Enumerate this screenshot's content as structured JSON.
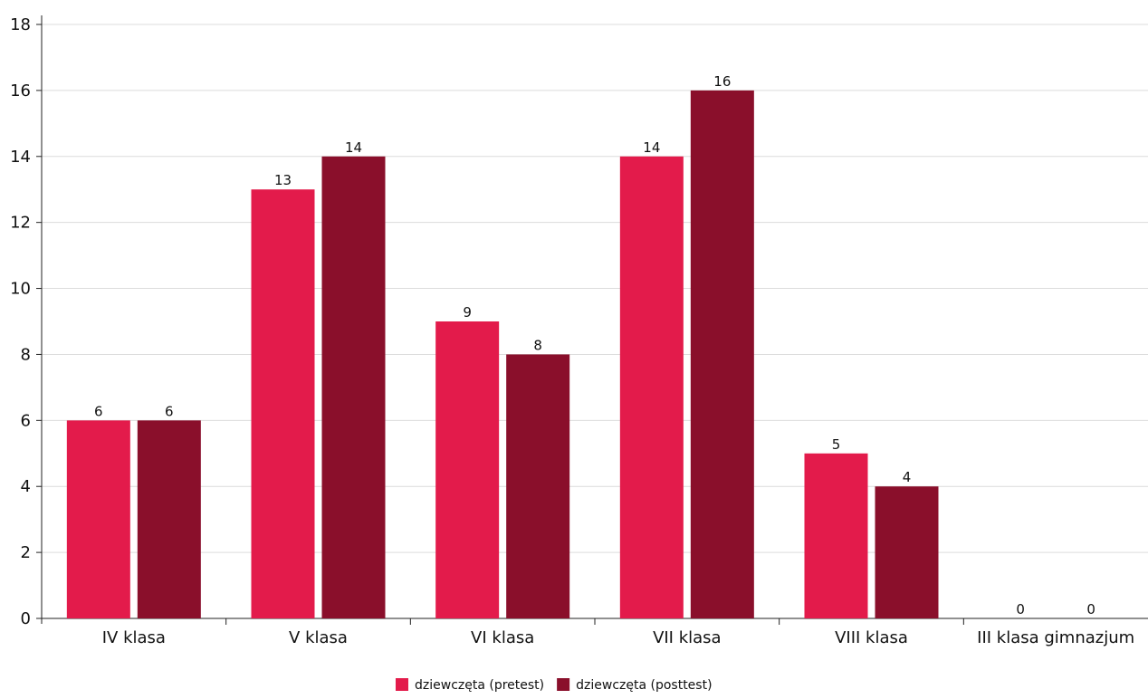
{
  "chart_data": {
    "type": "bar",
    "categories": [
      "IV klasa",
      "V klasa",
      "VI klasa",
      "VII klasa",
      "VIII klasa",
      "III klasa gimnazjum"
    ],
    "series": [
      {
        "name": "dziewczęta (pretest)",
        "values": [
          6,
          13,
          9,
          14,
          5,
          0
        ],
        "color": "#e31b4b"
      },
      {
        "name": "dziewczęta (posttest)",
        "values": [
          6,
          14,
          8,
          16,
          4,
          0
        ],
        "color": "#8a0f2b"
      }
    ],
    "ylim": [
      0,
      18
    ],
    "yticks": [
      0,
      2,
      4,
      6,
      8,
      10,
      12,
      14,
      16,
      18
    ],
    "grid": true,
    "legend": "bottom-center",
    "data_labels": true
  }
}
